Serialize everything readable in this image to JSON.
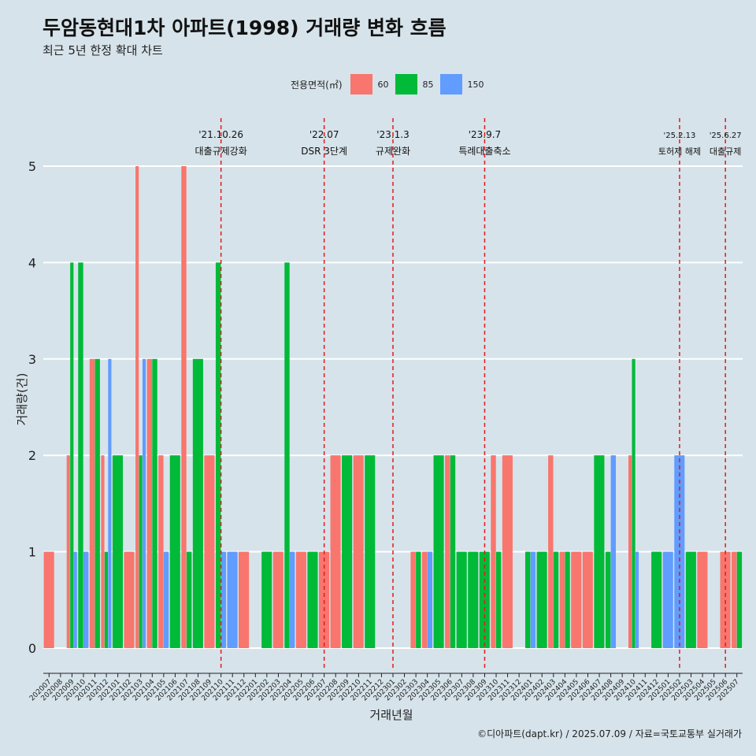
{
  "title": "두암동현대1차 아파트(1998) 거래량 변화 흐름",
  "subtitle": "최근 5년 한정 확대 차트",
  "caption": "©디아파트(dapt.kr) / 2025.07.09 / 자료=국토교통부 실거래가",
  "legend": {
    "title": "전용면적(㎡)"
  },
  "colors": {
    "60": "#f8766d",
    "85": "#00ba38",
    "150": "#619cff",
    "event_line": "#e31a1c",
    "background": "#d6e3ea",
    "grid": "#ffffff"
  },
  "chart_data": {
    "type": "bar",
    "xlabel": "거래년월",
    "ylabel": "거래량(건)",
    "ylim": [
      0,
      5
    ],
    "yticks": [
      0,
      1,
      2,
      3,
      4,
      5
    ],
    "grid": true,
    "legend_position": "top",
    "categories": [
      "202007",
      "202008",
      "202009",
      "202010",
      "202011",
      "202012",
      "202101",
      "202102",
      "202103",
      "202104",
      "202105",
      "202106",
      "202107",
      "202108",
      "202109",
      "202110",
      "202111",
      "202112",
      "202201",
      "202202",
      "202203",
      "202204",
      "202205",
      "202206",
      "202207",
      "202208",
      "202209",
      "202210",
      "202211",
      "202212",
      "202301",
      "202302",
      "202303",
      "202304",
      "202305",
      "202306",
      "202307",
      "202308",
      "202309",
      "202310",
      "202311",
      "202312",
      "202401",
      "202402",
      "202403",
      "202404",
      "202405",
      "202406",
      "202407",
      "202408",
      "202409",
      "202410",
      "202411",
      "202412",
      "202501",
      "202502",
      "202503",
      "202504",
      "202505",
      "202506",
      "202507"
    ],
    "tick_labels": [
      "202007",
      "202008",
      "202009",
      "202010",
      "202011",
      "202012",
      "202101",
      "202102",
      "202103",
      "202104",
      "202105",
      "202106",
      "202107",
      "202108",
      "202109",
      "202110",
      "202111",
      "202112",
      "202201",
      "202202",
      "202203",
      "202204",
      "202205",
      "202206",
      "202207",
      "202208",
      "202209",
      "202210",
      "202211",
      "202212",
      "202301",
      "202302",
      "202303",
      "202304",
      "202305",
      "202306",
      "202307",
      "202308",
      "202309",
      "202310",
      "202311",
      "202312",
      "202401",
      "202402",
      "202403",
      "202404",
      "202405",
      "202406",
      "202407",
      "202408",
      "202409",
      "202410",
      "202411",
      "202412",
      "202501",
      "202502",
      "202503",
      "202504",
      "202505",
      "202506",
      "202507"
    ],
    "series": [
      {
        "name": "60",
        "values": [
          1,
          0,
          2,
          0,
          3,
          2,
          0,
          1,
          5,
          3,
          2,
          0,
          5,
          0,
          2,
          0,
          0,
          1,
          0,
          0,
          1,
          0,
          1,
          0,
          1,
          2,
          0,
          2,
          0,
          0,
          0,
          0,
          1,
          1,
          0,
          2,
          0,
          0,
          0,
          2,
          2,
          0,
          0,
          0,
          2,
          1,
          1,
          1,
          0,
          0,
          0,
          2,
          0,
          0,
          0,
          0,
          0,
          1,
          0,
          1,
          1
        ]
      },
      {
        "name": "85",
        "values": [
          0,
          0,
          4,
          4,
          3,
          1,
          2,
          0,
          2,
          3,
          0,
          2,
          1,
          3,
          0,
          4,
          0,
          0,
          0,
          1,
          0,
          4,
          0,
          1,
          0,
          0,
          2,
          0,
          2,
          0,
          0,
          0,
          1,
          0,
          2,
          2,
          1,
          1,
          1,
          1,
          0,
          0,
          1,
          1,
          1,
          1,
          0,
          0,
          2,
          1,
          0,
          3,
          0,
          1,
          0,
          0,
          1,
          0,
          0,
          0,
          1
        ]
      },
      {
        "name": "150",
        "values": [
          0,
          0,
          1,
          1,
          0,
          3,
          0,
          0,
          3,
          0,
          1,
          0,
          0,
          0,
          0,
          1,
          1,
          0,
          0,
          0,
          0,
          1,
          0,
          0,
          0,
          0,
          0,
          0,
          0,
          0,
          0,
          0,
          0,
          1,
          0,
          0,
          0,
          0,
          0,
          0,
          0,
          0,
          1,
          0,
          0,
          0,
          0,
          0,
          0,
          2,
          0,
          1,
          0,
          0,
          1,
          2,
          0,
          0,
          0,
          0,
          0
        ]
      }
    ],
    "events": [
      {
        "date": "'21.10.26",
        "text": "대출규제강화",
        "x": "202110"
      },
      {
        "date": "'22.07",
        "text": "DSR 3단계",
        "x": "202207"
      },
      {
        "date": "'23.1.3",
        "text": "규제완화",
        "x": "202301"
      },
      {
        "date": "'23.9.7",
        "text": "특례대출축소",
        "x": "202309"
      },
      {
        "date": "'25.2.13",
        "text": "토허제 해제",
        "x": "202502"
      },
      {
        "date": "'25.6.27",
        "text": "대출규제",
        "x": "202506"
      }
    ]
  }
}
